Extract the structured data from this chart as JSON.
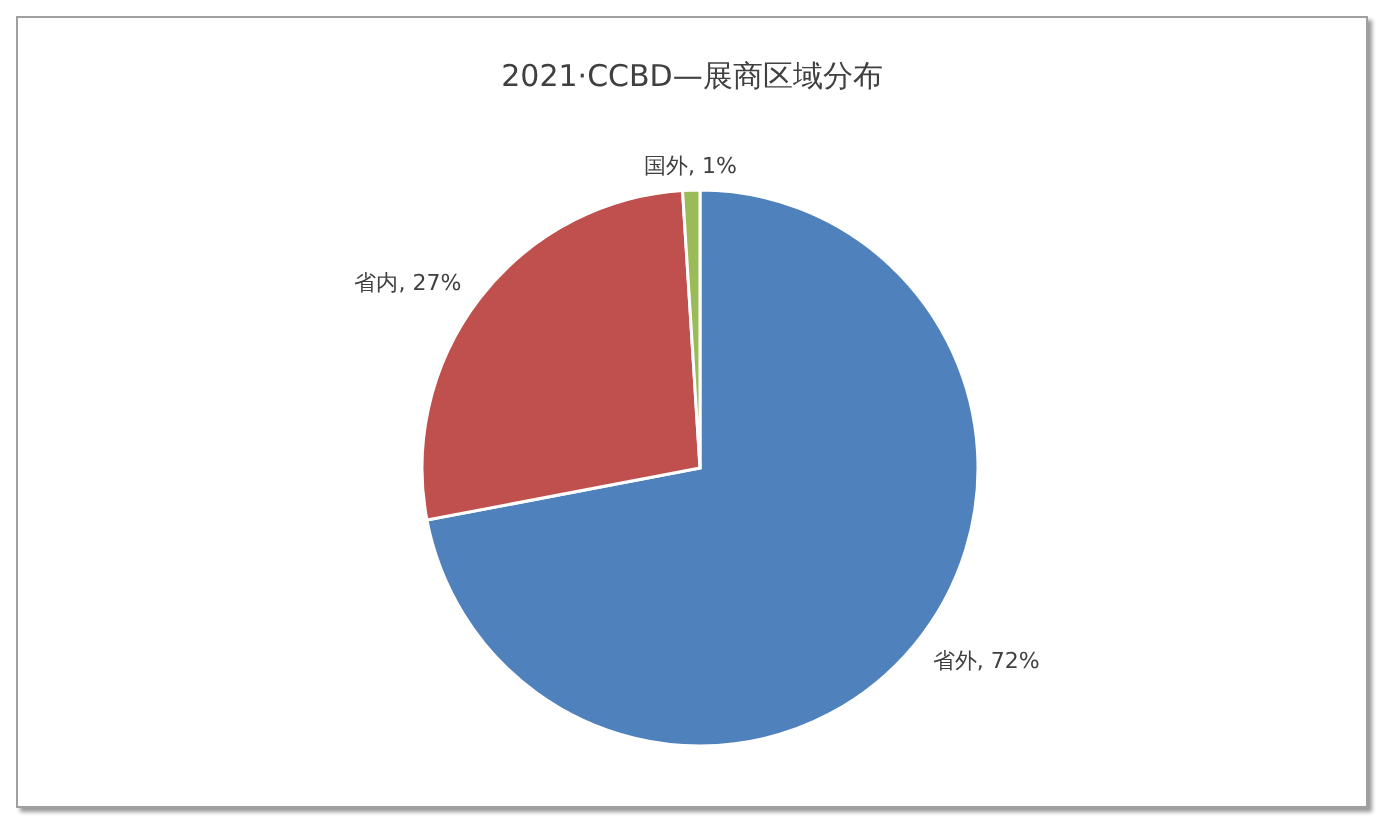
{
  "chart_data": {
    "type": "pie",
    "title": "2021·CCBD—展商区域分布",
    "categories": [
      "省外",
      "省内",
      "国外"
    ],
    "values": [
      72,
      27,
      1
    ],
    "value_labels": [
      "72%",
      "27%",
      "1%"
    ],
    "colors": [
      "#4f81bd",
      "#c0504d",
      "#9bbb59"
    ],
    "legend": false
  }
}
